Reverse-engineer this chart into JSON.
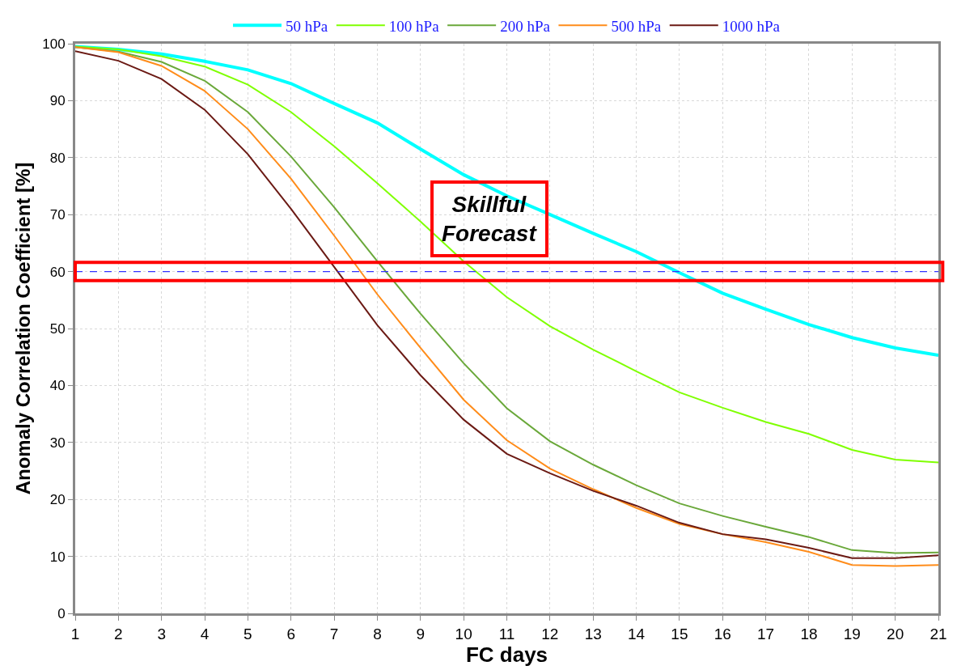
{
  "chart_data": {
    "type": "line",
    "xlabel": "FC days",
    "ylabel": "Anomaly Correlation Coefficient [%]",
    "x": [
      1,
      2,
      3,
      4,
      5,
      6,
      7,
      8,
      9,
      10,
      11,
      12,
      13,
      14,
      15,
      16,
      17,
      18,
      19,
      20,
      21
    ],
    "series": [
      {
        "name": "50 hPa",
        "color": "#00ffff",
        "values": [
          99.5,
          99,
          98.2,
          96.9,
          95.4,
          93,
          89.5,
          86.1,
          81.5,
          77,
          73.3,
          70,
          66.7,
          63.5,
          59.8,
          56.2,
          53.4,
          50.7,
          48.4,
          46.6,
          45.3
        ]
      },
      {
        "name": "100 hPa",
        "color": "#7fff00",
        "values": [
          99.5,
          99,
          97.8,
          96,
          92.8,
          88,
          82,
          75.5,
          68.8,
          61.8,
          55.5,
          50.4,
          46.3,
          42.5,
          38.8,
          36.1,
          33.6,
          31.5,
          28.7,
          27,
          26.5
        ]
      },
      {
        "name": "200 hPa",
        "color": "#6aa83a",
        "values": [
          99.4,
          98.6,
          96.8,
          93.5,
          88,
          80.2,
          71.3,
          61.8,
          52.6,
          43.9,
          36,
          30.2,
          26.1,
          22.5,
          19.3,
          17.1,
          15.2,
          13.4,
          11.1,
          10.6,
          10.7
        ]
      },
      {
        "name": "500 hPa",
        "color": "#ff8c1a",
        "values": [
          99.4,
          98.5,
          96.1,
          91.7,
          85,
          76.3,
          66.3,
          56,
          46.6,
          37.5,
          30.4,
          25.4,
          21.8,
          18.5,
          15.7,
          13.9,
          12.5,
          10.8,
          8.5,
          8.3,
          8.5
        ]
      },
      {
        "name": "1000 hPa",
        "color": "#6b1a14",
        "values": [
          98.7,
          97,
          93.8,
          88.4,
          80.6,
          71,
          60.8,
          50.6,
          41.8,
          34,
          28,
          24.6,
          21.5,
          18.9,
          15.9,
          13.9,
          13,
          11.5,
          9.7,
          9.7,
          10.2
        ]
      }
    ],
    "xlim": [
      1,
      21
    ],
    "xticks": [
      1,
      2,
      3,
      4,
      5,
      6,
      7,
      8,
      9,
      10,
      11,
      12,
      13,
      14,
      15,
      16,
      17,
      18,
      19,
      20,
      21
    ],
    "ylim": [
      0,
      100
    ],
    "yticks": [
      0,
      10,
      20,
      30,
      40,
      50,
      60,
      70,
      80,
      90,
      100
    ],
    "ref_lines": [
      {
        "axis": "y",
        "value": 60,
        "color": "#3333ff",
        "line_style": "dashed"
      }
    ],
    "annotations": [
      "Skillful\nForecast"
    ],
    "grid": true,
    "legend": "top",
    "marker": "none",
    "line_style": "solid"
  }
}
